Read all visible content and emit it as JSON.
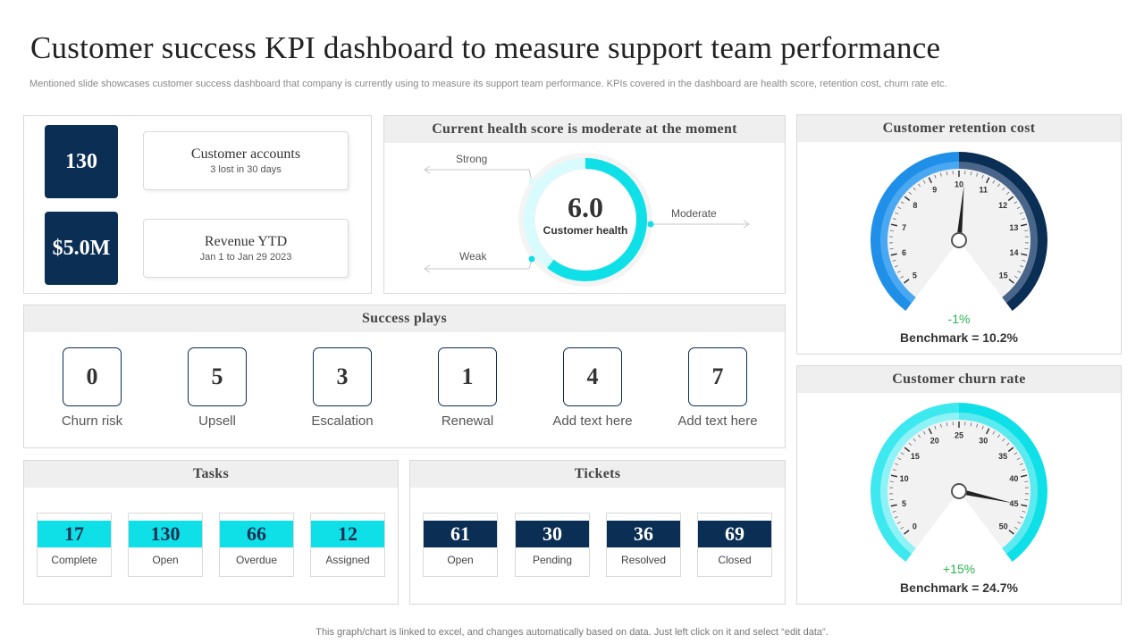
{
  "page": {
    "title": "Customer success KPI dashboard to measure support team performance",
    "subtitle": "Mentioned slide showcases customer success dashboard that company is currently using to measure its support team performance. KPIs covered in the dashboard are health score, retention cost, churn rate etc.",
    "footer": "This graph/chart is linked to excel,  and changes automatically based on data. Just left click on it and select “edit data”."
  },
  "summary": {
    "accounts": {
      "value": "130",
      "label": "Customer accounts",
      "sub": "3 lost in 30 days"
    },
    "revenue": {
      "value": "$5.0M",
      "label": "Revenue YTD",
      "sub": "Jan 1 to Jan 29 2023"
    }
  },
  "health": {
    "title": "Current health score is moderate at the moment",
    "score": "6.0",
    "score_label": "Customer health",
    "strong_label": "Strong",
    "moderate_label": "Moderate",
    "weak_label": "Weak"
  },
  "success_plays": {
    "title": "Success plays",
    "items": [
      {
        "value": "0",
        "label": "Churn risk"
      },
      {
        "value": "5",
        "label": "Upsell"
      },
      {
        "value": "3",
        "label": "Escalation"
      },
      {
        "value": "1",
        "label": "Renewal"
      },
      {
        "value": "4",
        "label": "Add text here"
      },
      {
        "value": "7",
        "label": "Add text here"
      }
    ]
  },
  "tasks": {
    "title": "Tasks",
    "items": [
      {
        "value": "17",
        "label": "Complete"
      },
      {
        "value": "130",
        "label": "Open"
      },
      {
        "value": "66",
        "label": "Overdue"
      },
      {
        "value": "12",
        "label": "Assigned"
      }
    ]
  },
  "tickets": {
    "title": "Tickets",
    "items": [
      {
        "value": "61",
        "label": "Open"
      },
      {
        "value": "30",
        "label": "Pending"
      },
      {
        "value": "36",
        "label": "Resolved"
      },
      {
        "value": "69",
        "label": "Closed"
      }
    ]
  },
  "retention": {
    "title": "Customer retention cost",
    "ticks": [
      "5",
      "6",
      "7",
      "8",
      "9",
      "10",
      "11",
      "12",
      "13",
      "14",
      "15"
    ],
    "needle_value": 10.2,
    "delta": "-1%",
    "benchmark": "Benchmark = 10.2%"
  },
  "churn": {
    "title": "Customer churn rate",
    "ticks": [
      "0",
      "5",
      "10",
      "15",
      "20",
      "25",
      "30",
      "35",
      "40",
      "45",
      "50"
    ],
    "needle_value": 45,
    "delta": "+15%",
    "benchmark": "Benchmark = 24.7%"
  },
  "colors": {
    "navy": "#0b2e54",
    "cyan": "#0fe0e8",
    "blue": "#1a86e0",
    "green": "#2ab24f"
  }
}
